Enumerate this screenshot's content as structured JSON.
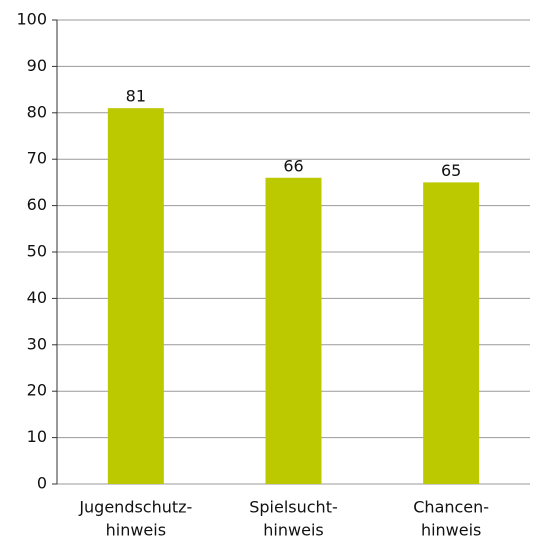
{
  "chart_data": {
    "type": "bar",
    "categories": [
      [
        "Jugendschutz-",
        "hinweis"
      ],
      [
        "Spielsucht-",
        "hinweis"
      ],
      [
        "Chancen-",
        "hinweis"
      ]
    ],
    "values": [
      81,
      66,
      65
    ],
    "color": "#bcc800",
    "ylim": [
      0,
      100
    ],
    "yticks": [
      0,
      10,
      20,
      30,
      40,
      50,
      60,
      70,
      80,
      90,
      100
    ],
    "grid": true
  }
}
